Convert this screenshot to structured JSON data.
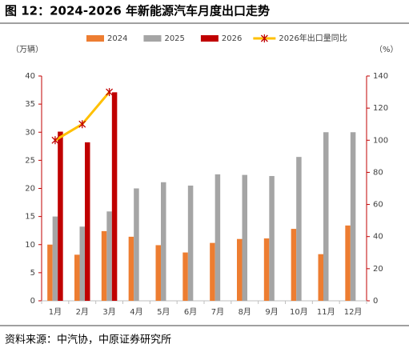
{
  "chart_data": {
    "type": "bar-line",
    "title": "图 12：2024-2026 年新能源汽车月度出口走势",
    "y_label": "（万辆）",
    "y2_label": "（%）",
    "source": "资料来源：中汽协，中原证券研究所",
    "categories": [
      "1月",
      "2月",
      "3月",
      "4月",
      "5月",
      "6月",
      "7月",
      "8月",
      "9月",
      "10月",
      "11月",
      "12月"
    ],
    "series": [
      {
        "name": "2024",
        "color": "#ed7d31",
        "type": "bar",
        "values": [
          10.0,
          8.2,
          12.4,
          11.4,
          9.9,
          8.6,
          10.3,
          11.0,
          11.1,
          12.8,
          8.3,
          13.4
        ]
      },
      {
        "name": "2025",
        "color": "#a5a5a5",
        "type": "bar",
        "values": [
          15.0,
          13.2,
          15.9,
          20.0,
          21.1,
          20.5,
          22.5,
          22.4,
          22.2,
          25.6,
          30.0,
          30.0
        ]
      },
      {
        "name": "2026",
        "color": "#c00000",
        "type": "bar",
        "values": [
          30.1,
          28.2,
          37.1,
          null,
          null,
          null,
          null,
          null,
          null,
          null,
          null,
          null
        ]
      },
      {
        "name": "2026年出口量同比",
        "color": "#ffc000",
        "type": "line",
        "axis": "y2",
        "values": [
          100,
          110,
          130,
          null,
          null,
          null,
          null,
          null,
          null,
          null,
          null,
          null
        ]
      }
    ],
    "ylim": [
      0,
      40
    ],
    "yticks": [
      0,
      5,
      10,
      15,
      20,
      25,
      30,
      35,
      40
    ],
    "y2lim": [
      0,
      140
    ],
    "y2ticks": [
      0,
      20,
      40,
      60,
      80,
      100,
      120,
      140
    ]
  }
}
